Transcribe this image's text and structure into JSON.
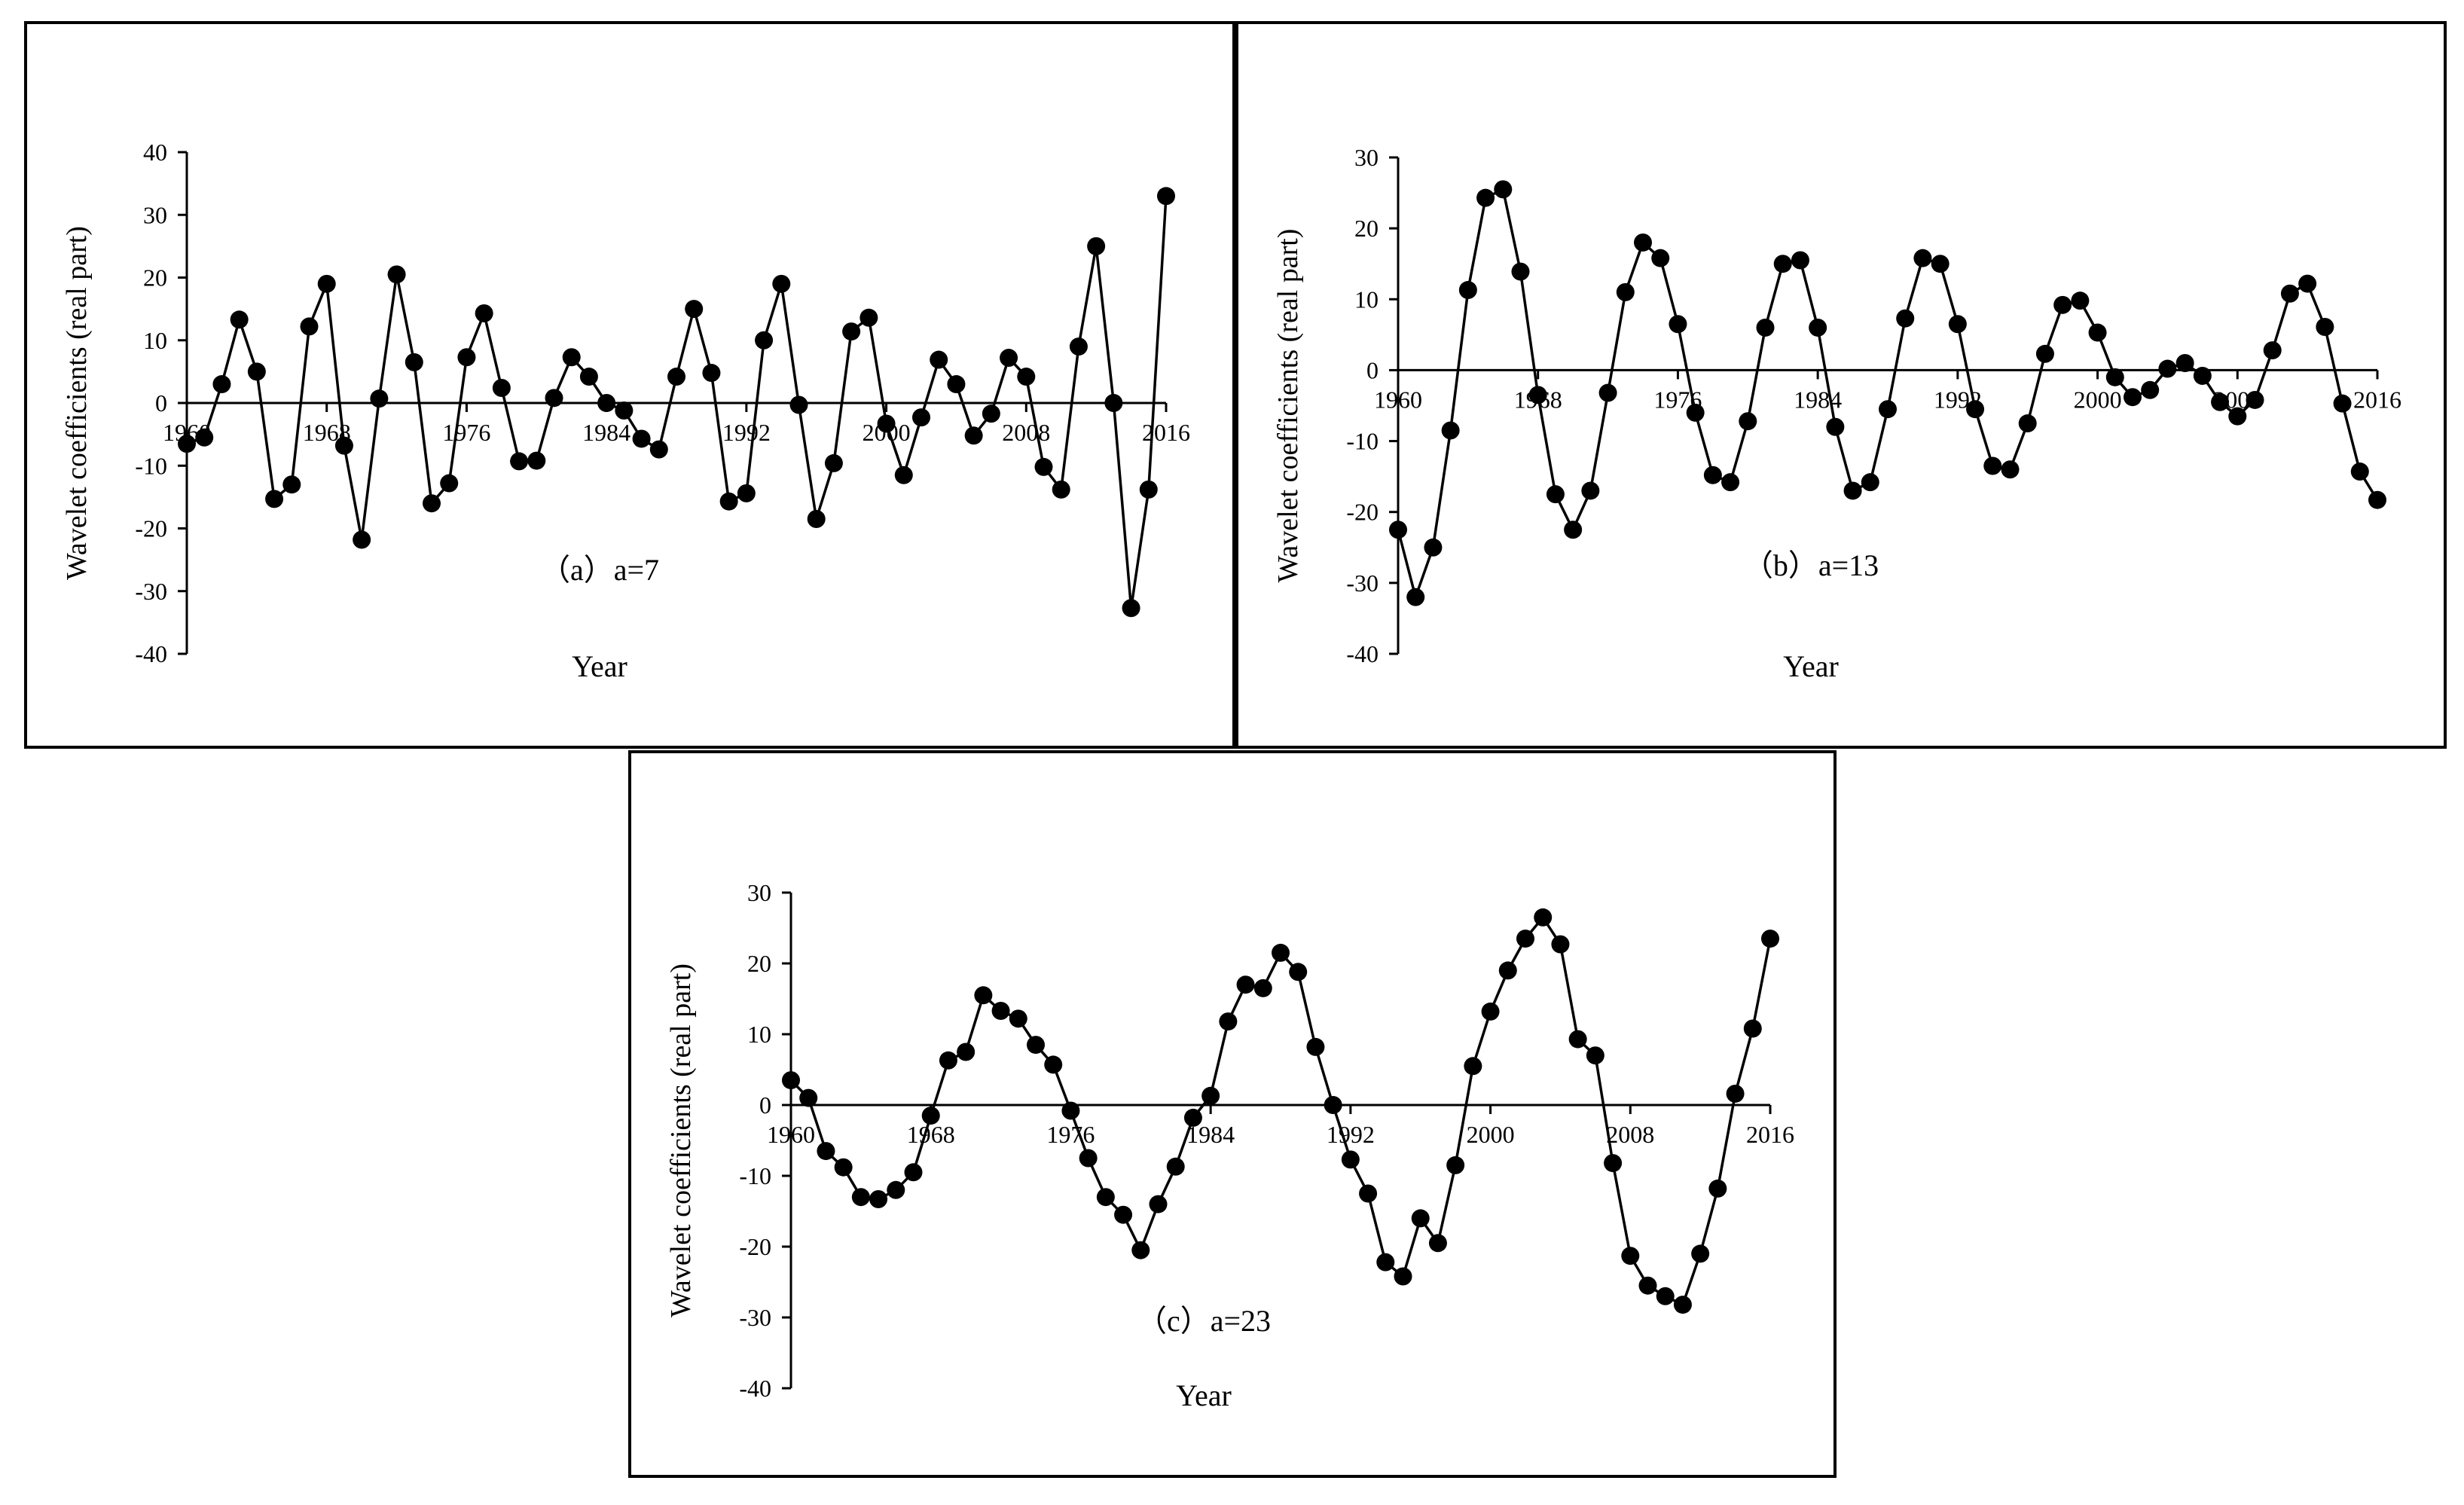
{
  "chart_data": [
    {
      "type": "line",
      "caption": "（a）a=7",
      "xlabel": "Year",
      "ylabel": "Wavelet coefficients (real part)",
      "xlim": [
        1960,
        2016
      ],
      "ylim": [
        -40,
        40
      ],
      "x_ticks": [
        "1960",
        "1968",
        "1976",
        "1984",
        "1992",
        "2000",
        "2008",
        "2016"
      ],
      "y_ticks": [
        "-40",
        "-30",
        "-20",
        "-10",
        "0",
        "10",
        "20",
        "30",
        "40"
      ],
      "series": [
        {
          "x": [
            1960,
            1961,
            1962,
            1963,
            1964,
            1965,
            1966,
            1967,
            1968,
            1969,
            1970,
            1971,
            1972,
            1973,
            1974,
            1975,
            1976,
            1977,
            1978,
            1979,
            1980,
            1981,
            1982,
            1983,
            1984,
            1985,
            1986,
            1987,
            1988,
            1989,
            1990,
            1991,
            1992,
            1993,
            1994,
            1995,
            1996,
            1997,
            1998,
            1999,
            2000,
            2001,
            2002,
            2003,
            2004,
            2005,
            2006,
            2007,
            2008,
            2009,
            2010,
            2011,
            2012,
            2013,
            2014,
            2015,
            2016
          ],
          "values": [
            -6.5,
            -5.5,
            3,
            13.3,
            5,
            -15.3,
            -13,
            12.2,
            19,
            -6.8,
            -21.8,
            0.7,
            20.5,
            6.5,
            -16,
            -12.8,
            7.3,
            14.3,
            2.4,
            -9.3,
            -9.2,
            0.8,
            7.3,
            4.2,
            0,
            -1.2,
            -5.7,
            -7.4,
            4.2,
            15,
            4.8,
            -15.7,
            -14.4,
            10,
            19,
            -0.3,
            -18.5,
            -9.6,
            11.4,
            13.6,
            -3.3,
            -11.5,
            -2.3,
            6.9,
            3,
            -5.2,
            -1.7,
            7.2,
            4.2,
            -10.2,
            -13.8,
            9,
            25,
            0,
            -32.7,
            -13.8,
            33
          ]
        }
      ]
    },
    {
      "type": "line",
      "caption": "（b）a=13",
      "xlabel": "Year",
      "ylabel": "Wavelet coefficients (real part)",
      "xlim": [
        1960,
        2016
      ],
      "ylim": [
        -40,
        30
      ],
      "x_ticks": [
        "1960",
        "1968",
        "1976",
        "1984",
        "1992",
        "2000",
        "2008",
        "2016"
      ],
      "y_ticks": [
        "-40",
        "-30",
        "-20",
        "-10",
        "0",
        "10",
        "20",
        "30"
      ],
      "series": [
        {
          "x": [
            1960,
            1961,
            1962,
            1963,
            1964,
            1965,
            1966,
            1967,
            1968,
            1969,
            1970,
            1971,
            1972,
            1973,
            1974,
            1975,
            1976,
            1977,
            1978,
            1979,
            1980,
            1981,
            1982,
            1983,
            1984,
            1985,
            1986,
            1987,
            1988,
            1989,
            1990,
            1991,
            1992,
            1993,
            1994,
            1995,
            1996,
            1997,
            1998,
            1999,
            2000,
            2001,
            2002,
            2003,
            2004,
            2005,
            2006,
            2007,
            2008,
            2009,
            2010,
            2011,
            2012,
            2013,
            2014,
            2015,
            2016
          ],
          "values": [
            -22.5,
            -32,
            -25,
            -8.5,
            11.3,
            24.3,
            25.5,
            13.9,
            -3.5,
            -17.5,
            -22.5,
            -17,
            -3.2,
            11,
            18,
            15.8,
            6.5,
            -6,
            -14.8,
            -15.8,
            -7.2,
            6,
            15,
            15.5,
            6,
            -8,
            -17,
            -15.8,
            -5.5,
            7.3,
            15.8,
            15,
            6.5,
            -5.5,
            -13.5,
            -14,
            -7.5,
            2.3,
            9.2,
            9.8,
            5.3,
            -1,
            -3.8,
            -2.8,
            0.2,
            1,
            -0.8,
            -4.5,
            -6.5,
            -4.2,
            2.8,
            10.8,
            12.2,
            6.1,
            -4.7,
            -14.3,
            -18.3
          ]
        }
      ]
    },
    {
      "type": "line",
      "caption": "（c）a=23",
      "xlabel": "Year",
      "ylabel": "Wavelet coefficients (real part)",
      "xlim": [
        1960,
        2016
      ],
      "ylim": [
        -40,
        30
      ],
      "x_ticks": [
        "1960",
        "1968",
        "1976",
        "1984",
        "1992",
        "2000",
        "2008",
        "2016"
      ],
      "y_ticks": [
        "-40",
        "-30",
        "-20",
        "-10",
        "0",
        "10",
        "20",
        "30"
      ],
      "series": [
        {
          "x": [
            1960,
            1961,
            1962,
            1963,
            1964,
            1965,
            1966,
            1967,
            1968,
            1969,
            1970,
            1971,
            1972,
            1973,
            1974,
            1975,
            1976,
            1977,
            1978,
            1979,
            1980,
            1981,
            1982,
            1983,
            1984,
            1985,
            1986,
            1987,
            1988,
            1989,
            1990,
            1991,
            1992,
            1993,
            1994,
            1995,
            1996,
            1997,
            1998,
            1999,
            2000,
            2001,
            2002,
            2003,
            2004,
            2005,
            2006,
            2007,
            2008,
            2009,
            2010,
            2011,
            2012,
            2013,
            2014,
            2015,
            2016
          ],
          "values": [
            3.5,
            1,
            -6.5,
            -8.8,
            -13,
            -13.3,
            -12,
            -9.5,
            -1.5,
            6.3,
            7.5,
            15.5,
            13.3,
            12.2,
            8.5,
            5.7,
            -0.8,
            -7.5,
            -13,
            -15.5,
            -20.5,
            -14,
            -8.7,
            -1.8,
            1.3,
            11.8,
            17,
            16.5,
            21.5,
            18.8,
            8.2,
            0,
            -7.7,
            -12.5,
            -22.2,
            -24.2,
            -16,
            -19.5,
            -8.5,
            5.5,
            13.2,
            19,
            23.5,
            26.5,
            22.7,
            9.3,
            7,
            -8.2,
            -21.3,
            -25.5,
            -27,
            -28.2,
            -21,
            -11.8,
            1.6,
            10.8,
            23.5
          ]
        }
      ]
    }
  ]
}
